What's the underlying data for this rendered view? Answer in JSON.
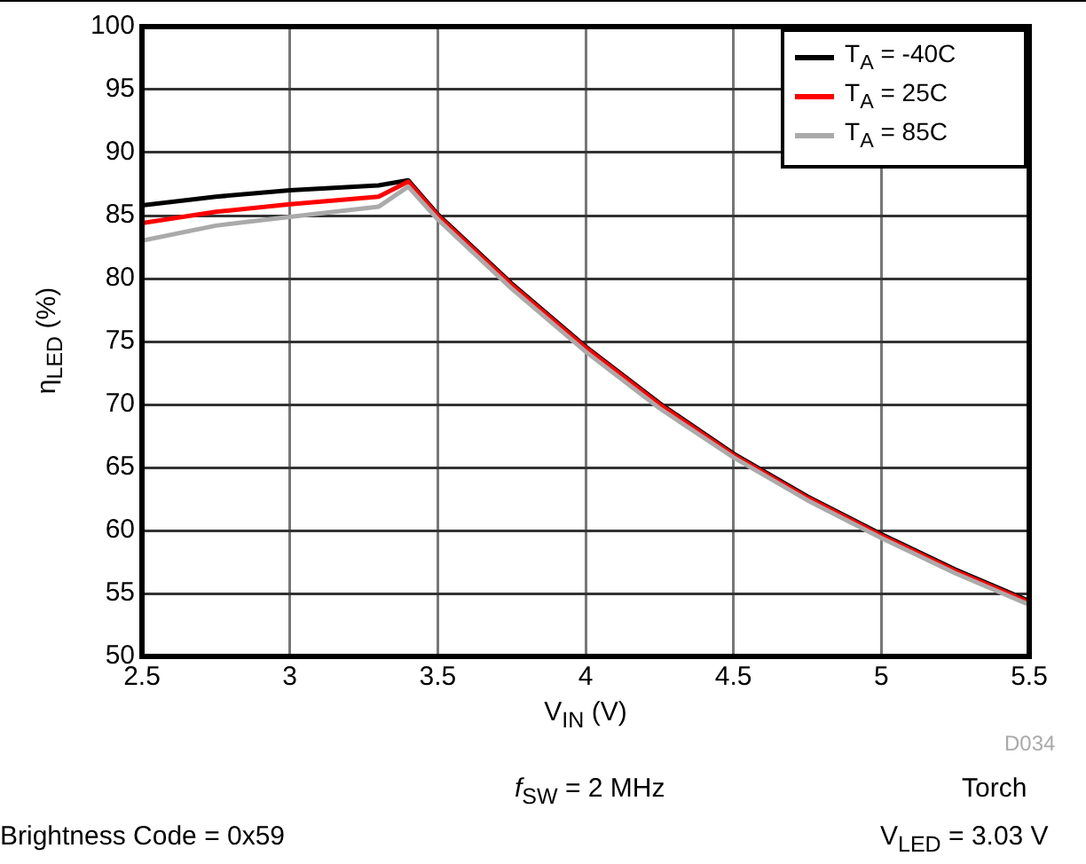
{
  "chart_data": {
    "type": "line",
    "xlabel": "V$_{IN}$ (V)",
    "ylabel": "η$_{LED}$ (%)",
    "xlim": [
      2.5,
      5.5
    ],
    "xticks": [
      2.5,
      3,
      3.5,
      4,
      4.5,
      5,
      5.5
    ],
    "ylim": [
      50,
      100
    ],
    "yticks": [
      50,
      55,
      60,
      65,
      70,
      75,
      80,
      85,
      90,
      95,
      100
    ],
    "grid": true,
    "legend": "top right",
    "marker": "none",
    "line_style": "solid",
    "series": [
      {
        "name": "T$_{A}$ = -40C",
        "color": "#000000",
        "x": [
          2.5,
          2.75,
          3.0,
          3.3,
          3.4,
          3.5,
          3.75,
          4.0,
          4.25,
          4.5,
          4.75,
          5.0,
          5.25,
          5.5
        ],
        "values": [
          85.8,
          86.5,
          87.0,
          87.4,
          87.8,
          85.1,
          79.6,
          74.6,
          70.1,
          66.1,
          62.7,
          59.7,
          56.9,
          54.4
        ]
      },
      {
        "name": "T$_{A}$ = 25C",
        "color": "#ff0000",
        "x": [
          2.5,
          2.75,
          3.0,
          3.3,
          3.4,
          3.5,
          3.75,
          4.0,
          4.25,
          4.5,
          4.75,
          5.0,
          5.25,
          5.5
        ],
        "values": [
          84.4,
          85.3,
          85.9,
          86.5,
          87.7,
          85.0,
          79.5,
          74.5,
          70.0,
          66.0,
          62.6,
          59.6,
          56.8,
          54.3
        ]
      },
      {
        "name": "T$_{A}$ = 85C",
        "color": "#aaaaaa",
        "x": [
          2.5,
          2.75,
          3.0,
          3.3,
          3.4,
          3.5,
          3.75,
          4.0,
          4.25,
          4.5,
          4.75,
          5.0,
          5.25,
          5.5
        ],
        "values": [
          83.0,
          84.2,
          84.9,
          85.7,
          87.3,
          84.7,
          79.2,
          74.2,
          69.7,
          65.8,
          62.4,
          59.4,
          56.6,
          54.1
        ]
      }
    ],
    "annotations": [
      "D034",
      "f$_{SW}$ = 2 MHz",
      "Torch",
      "Brightness Code = 0x59",
      "V$_{LED}$ = 3.03 V"
    ]
  }
}
